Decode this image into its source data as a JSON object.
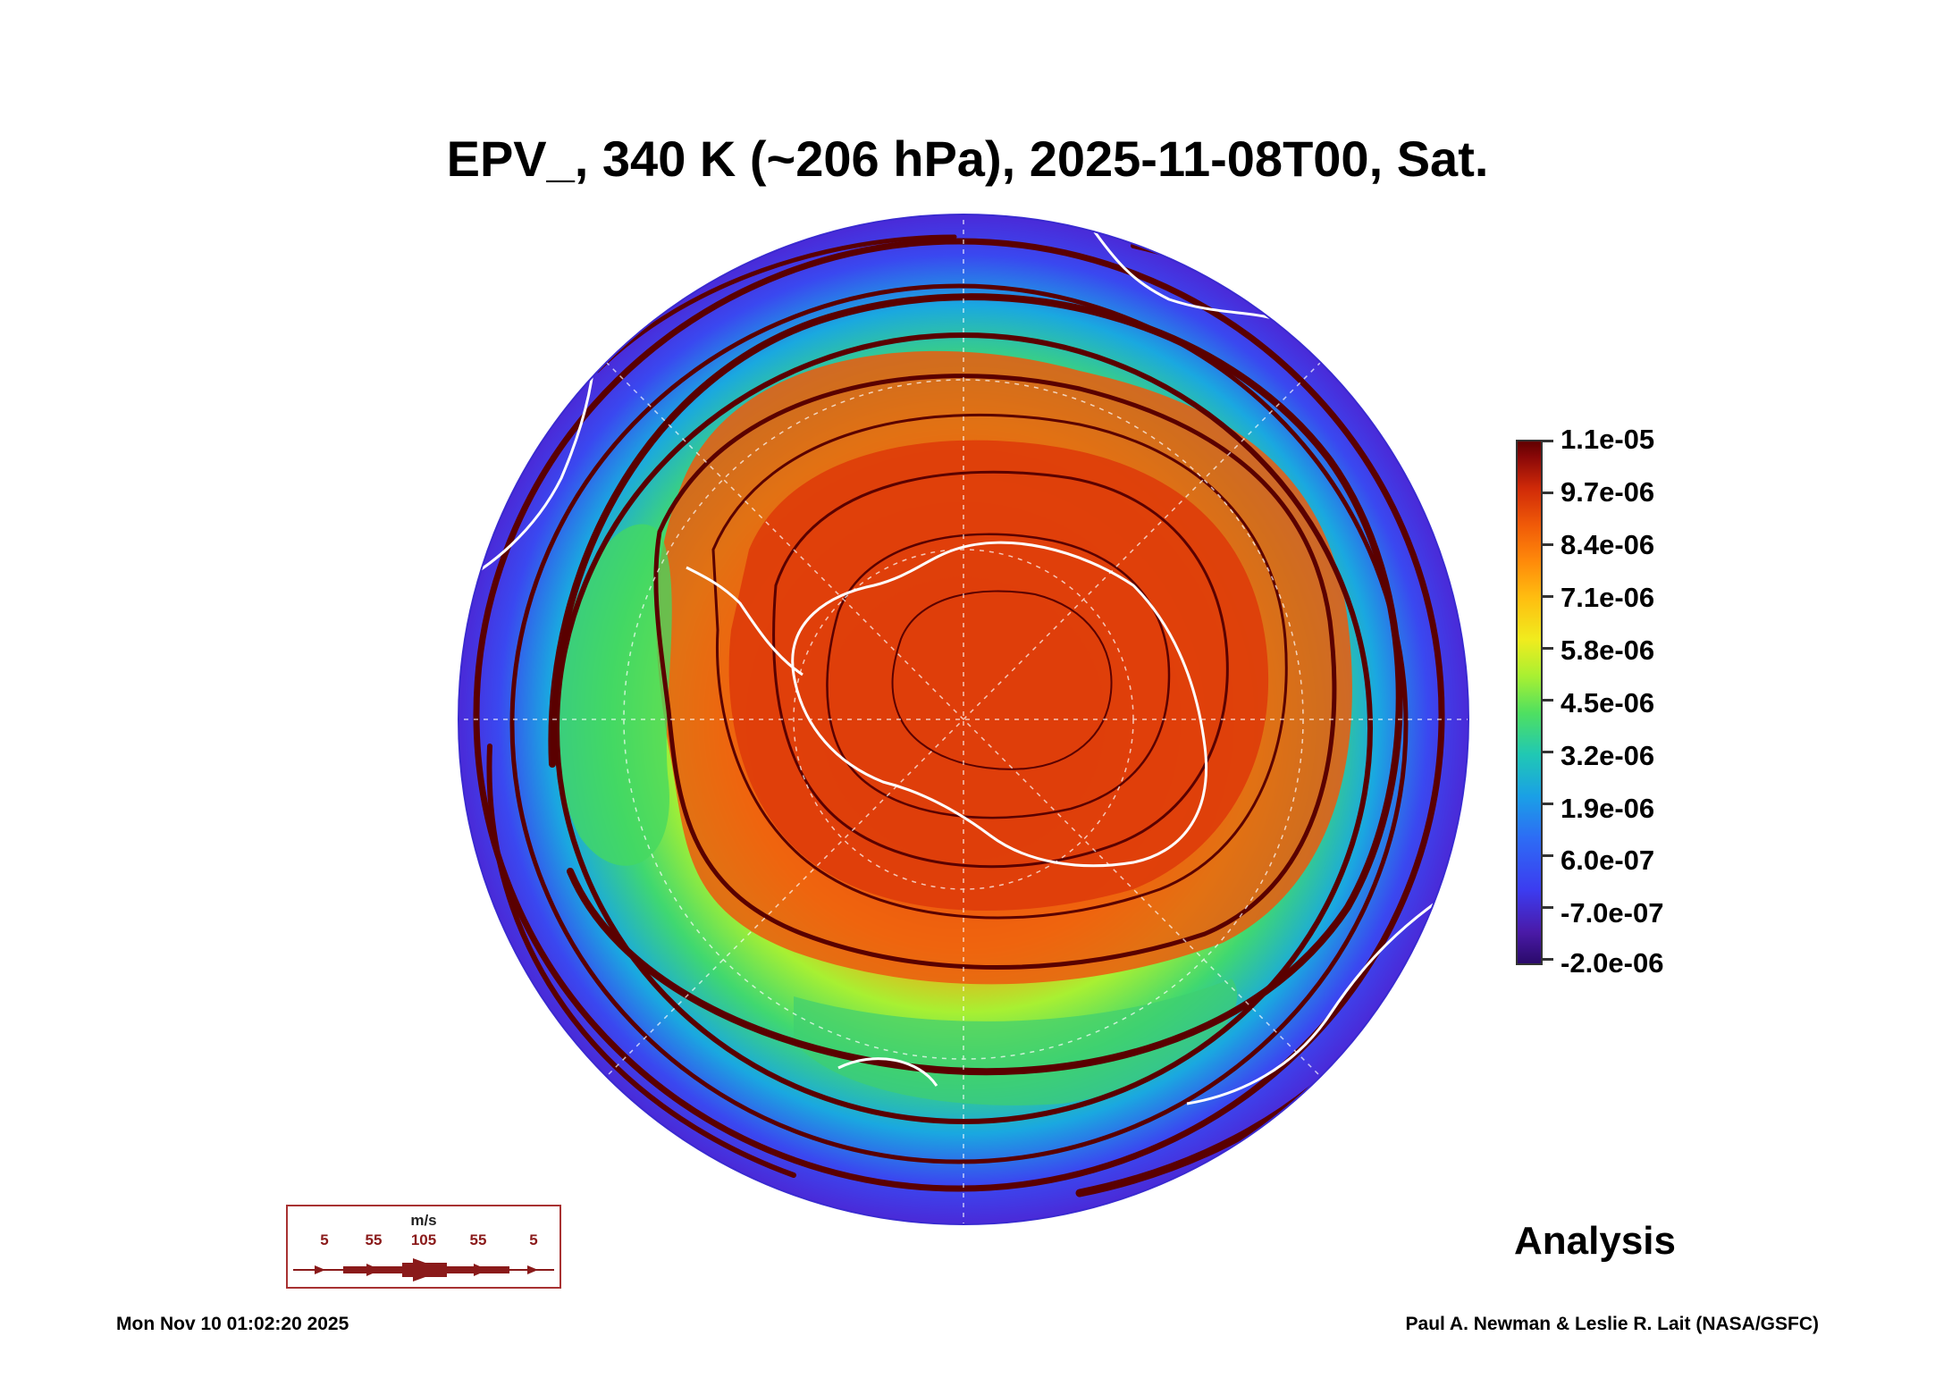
{
  "title": "EPV_, 340 K (~206 hPa), 2025-11-08T00, Sat.",
  "colorbar": {
    "labels": [
      "1.1e-05",
      "9.7e-06",
      "8.4e-06",
      "7.1e-06",
      "5.8e-06",
      "4.5e-06",
      "3.2e-06",
      "1.9e-06",
      "6.0e-07",
      "-7.0e-07",
      "-2.0e-06"
    ]
  },
  "wind_key": {
    "unit": "m/s",
    "speeds": [
      "5",
      "55",
      "105",
      "55",
      "5"
    ]
  },
  "analysis_label": "Analysis",
  "timestamp": "Mon Nov 10 01:02:20 2025",
  "credit": "Paul A. Newman & Leslie R. Lait (NASA/GSFC)",
  "colors": {
    "streamline": "#5a0000",
    "coastline": "#ffffff",
    "low": "#3c3cf0",
    "mid": "#4fe060",
    "high": "#e8400a"
  }
}
